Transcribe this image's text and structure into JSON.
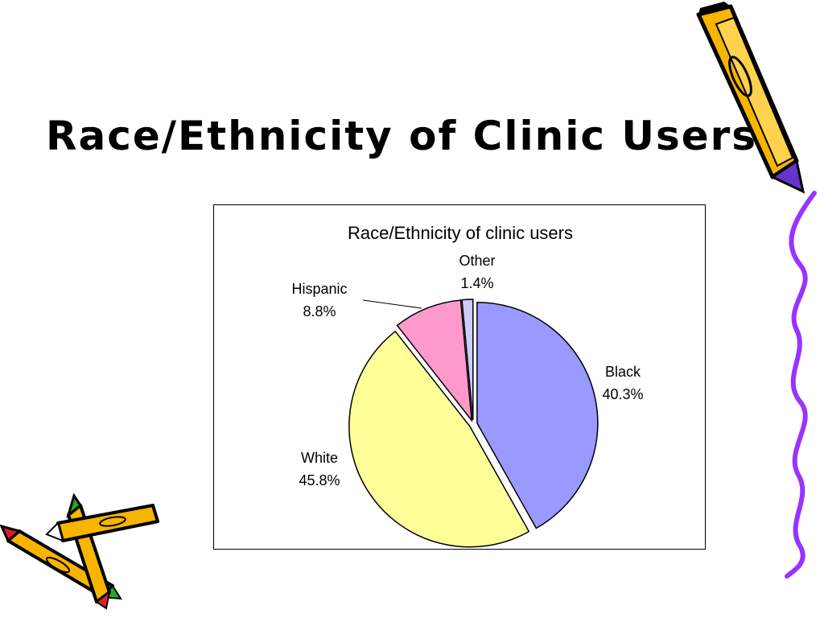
{
  "slide": {
    "title": "Race/Ethnicity of Clinic Users"
  },
  "chart_data": {
    "type": "pie",
    "title": "Race/Ethnicity of clinic users",
    "slices": [
      {
        "label": "Black",
        "value": 40.3,
        "value_label": "40.3%",
        "color": "#9999ff"
      },
      {
        "label": "White",
        "value": 45.8,
        "value_label": "45.8%",
        "color": "#ffff99"
      },
      {
        "label": "Hispanic",
        "value": 8.8,
        "value_label": "8.8%",
        "color": "#ff99cc"
      },
      {
        "label": "Other",
        "value": 1.4,
        "value_label": "1.4%",
        "color": "#ccccff"
      }
    ],
    "start_angle": "12 o'clock",
    "direction": "clockwise",
    "exploded": true,
    "legend": "none"
  },
  "colors": {
    "pencil_body": "#f7b500",
    "pencil_outline": "#000000",
    "pencil_lead_purple": "#6633cc",
    "squiggle": "#9933ff",
    "pencil_tip_red": "#dd2222",
    "pencil_tip_green": "#22aa22"
  }
}
